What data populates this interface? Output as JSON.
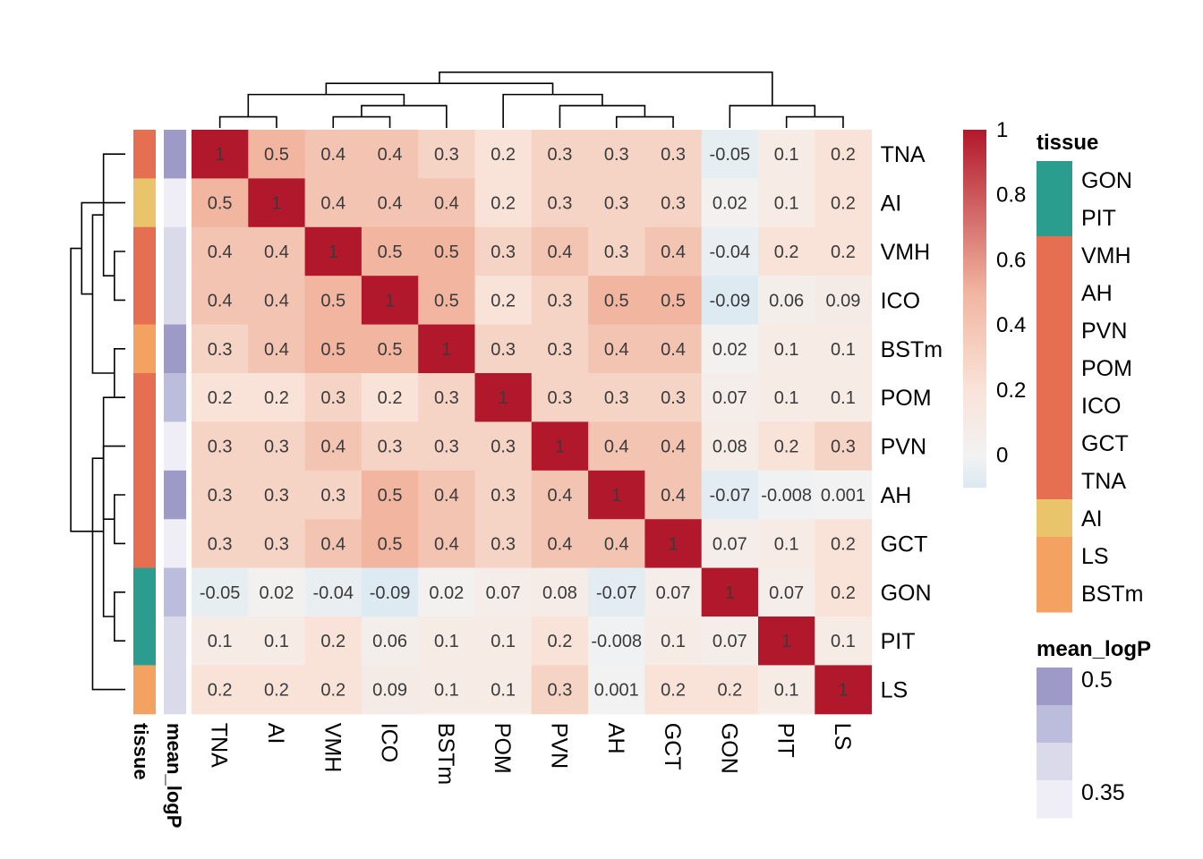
{
  "chart_data": {
    "type": "heatmap",
    "labels": [
      "TNA",
      "AI",
      "VMH",
      "ICO",
      "BSTm",
      "POM",
      "PVN",
      "AH",
      "GCT",
      "GON",
      "PIT",
      "LS"
    ],
    "matrix": [
      [
        1,
        0.5,
        0.4,
        0.4,
        0.3,
        0.2,
        0.3,
        0.3,
        0.3,
        -0.05,
        0.1,
        0.2
      ],
      [
        0.5,
        1,
        0.4,
        0.4,
        0.4,
        0.2,
        0.3,
        0.3,
        0.3,
        0.02,
        0.1,
        0.2
      ],
      [
        0.4,
        0.4,
        1,
        0.5,
        0.5,
        0.3,
        0.4,
        0.3,
        0.4,
        -0.04,
        0.2,
        0.2
      ],
      [
        0.4,
        0.4,
        0.5,
        1,
        0.5,
        0.2,
        0.3,
        0.5,
        0.5,
        -0.09,
        0.06,
        0.09
      ],
      [
        0.3,
        0.4,
        0.5,
        0.5,
        1,
        0.3,
        0.3,
        0.4,
        0.4,
        0.02,
        0.1,
        0.1
      ],
      [
        0.2,
        0.2,
        0.3,
        0.2,
        0.3,
        1,
        0.3,
        0.3,
        0.3,
        0.07,
        0.1,
        0.1
      ],
      [
        0.3,
        0.3,
        0.4,
        0.3,
        0.3,
        0.3,
        1,
        0.4,
        0.4,
        0.08,
        0.2,
        0.3
      ],
      [
        0.3,
        0.3,
        0.3,
        0.5,
        0.4,
        0.3,
        0.4,
        1,
        0.4,
        -0.07,
        -0.008,
        0.001
      ],
      [
        0.3,
        0.3,
        0.4,
        0.5,
        0.4,
        0.3,
        0.4,
        0.4,
        1,
        0.07,
        0.1,
        0.2
      ],
      [
        -0.05,
        0.02,
        -0.04,
        -0.09,
        0.02,
        0.07,
        0.08,
        -0.07,
        0.07,
        1,
        0.07,
        0.2
      ],
      [
        0.1,
        0.1,
        0.2,
        0.06,
        0.1,
        0.1,
        0.2,
        -0.008,
        0.1,
        0.07,
        1,
        0.1
      ],
      [
        0.2,
        0.2,
        0.2,
        0.09,
        0.1,
        0.1,
        0.3,
        0.001,
        0.2,
        0.2,
        0.1,
        1
      ]
    ],
    "value_labels": [
      [
        "1",
        "0.5",
        "0.4",
        "0.4",
        "0.3",
        "0.2",
        "0.3",
        "0.3",
        "0.3",
        "-0.05",
        "0.1",
        "0.2"
      ],
      [
        "0.5",
        "1",
        "0.4",
        "0.4",
        "0.4",
        "0.2",
        "0.3",
        "0.3",
        "0.3",
        "0.02",
        "0.1",
        "0.2"
      ],
      [
        "0.4",
        "0.4",
        "1",
        "0.5",
        "0.5",
        "0.3",
        "0.4",
        "0.3",
        "0.4",
        "-0.04",
        "0.2",
        "0.2"
      ],
      [
        "0.4",
        "0.4",
        "0.5",
        "1",
        "0.5",
        "0.2",
        "0.3",
        "0.5",
        "0.5",
        "-0.09",
        "0.06",
        "0.09"
      ],
      [
        "0.3",
        "0.4",
        "0.5",
        "0.5",
        "1",
        "0.3",
        "0.3",
        "0.4",
        "0.4",
        "0.02",
        "0.1",
        "0.1"
      ],
      [
        "0.2",
        "0.2",
        "0.3",
        "0.2",
        "0.3",
        "1",
        "0.3",
        "0.3",
        "0.3",
        "0.07",
        "0.1",
        "0.1"
      ],
      [
        "0.3",
        "0.3",
        "0.4",
        "0.3",
        "0.3",
        "0.3",
        "1",
        "0.4",
        "0.4",
        "0.08",
        "0.2",
        "0.3"
      ],
      [
        "0.3",
        "0.3",
        "0.3",
        "0.5",
        "0.4",
        "0.3",
        "0.4",
        "1",
        "0.4",
        "-0.07",
        "-0.008",
        "0.001"
      ],
      [
        "0.3",
        "0.3",
        "0.4",
        "0.5",
        "0.4",
        "0.3",
        "0.4",
        "0.4",
        "1",
        "0.07",
        "0.1",
        "0.2"
      ],
      [
        "-0.05",
        "0.02",
        "-0.04",
        "-0.09",
        "0.02",
        "0.07",
        "0.08",
        "-0.07",
        "0.07",
        "1",
        "0.07",
        "0.2"
      ],
      [
        "0.1",
        "0.1",
        "0.2",
        "0.06",
        "0.1",
        "0.1",
        "0.2",
        "-0.008",
        "0.1",
        "0.07",
        "1",
        "0.1"
      ],
      [
        "0.2",
        "0.2",
        "0.2",
        "0.09",
        "0.1",
        "0.1",
        "0.3",
        "0.001",
        "0.2",
        "0.2",
        "0.1",
        "1"
      ]
    ],
    "color_scale": {
      "stops": [
        {
          "value": -0.1,
          "color": "#dce9f2"
        },
        {
          "value": 0.0,
          "color": "#f2f2f2"
        },
        {
          "value": 0.2,
          "color": "#f9e3d8"
        },
        {
          "value": 0.5,
          "color": "#f1b5a0"
        },
        {
          "value": 1.0,
          "color": "#b2182b"
        }
      ],
      "ticks": [
        {
          "value": 1,
          "label": "1"
        },
        {
          "value": 0.8,
          "label": "0.8"
        },
        {
          "value": 0.6,
          "label": "0.6"
        },
        {
          "value": 0.4,
          "label": "0.4"
        },
        {
          "value": 0.2,
          "label": "0.2"
        },
        {
          "value": 0,
          "label": "0"
        }
      ],
      "range": [
        -0.1,
        1.0
      ]
    },
    "annotations": {
      "tissue": {
        "title": "tissue",
        "values": [
          "VMH",
          "AI",
          "VMH",
          "VMH",
          "BSTm",
          "VMH",
          "VMH",
          "VMH",
          "VMH",
          "GON",
          "GON",
          "BSTm"
        ],
        "legend": [
          {
            "label": "GON",
            "color": "#2a9d8f"
          },
          {
            "label": "PIT",
            "color": "#2a9d8f"
          },
          {
            "label": "VMH",
            "color": "#e76f51"
          },
          {
            "label": "AH",
            "color": "#e76f51"
          },
          {
            "label": "PVN",
            "color": "#e76f51"
          },
          {
            "label": "POM",
            "color": "#e76f51"
          },
          {
            "label": "ICO",
            "color": "#e76f51"
          },
          {
            "label": "GCT",
            "color": "#e76f51"
          },
          {
            "label": "TNA",
            "color": "#e76f51"
          },
          {
            "label": "AI",
            "color": "#e9c46a"
          },
          {
            "label": "LS",
            "color": "#f4a261"
          },
          {
            "label": "BSTm",
            "color": "#f4a261"
          }
        ]
      },
      "mean_logP": {
        "title": "mean_logP",
        "values": [
          0.5,
          0.35,
          0.4,
          0.4,
          0.5,
          0.45,
          0.35,
          0.5,
          0.35,
          0.45,
          0.4,
          0.4
        ],
        "legend_colors": [
          "#9e9ac8",
          "#bcbddc",
          "#dadaeb",
          "#efedf5"
        ],
        "legend_ticks": [
          {
            "value": 0.5,
            "label": "0.5"
          },
          {
            "value": 0.35,
            "label": "0.35"
          }
        ]
      }
    },
    "row_dendrogram": [
      [
        2,
        3
      ],
      [
        12,
        0
      ],
      [
        4,
        5
      ],
      [
        13,
        14
      ],
      [
        1,
        15
      ],
      [
        9,
        10
      ],
      [
        7,
        8
      ],
      [
        17,
        6
      ],
      [
        18,
        5
      ],
      [
        16,
        19
      ],
      [
        11,
        20
      ]
    ],
    "col_dendrogram": [
      [
        2,
        3
      ],
      [
        12,
        4
      ],
      [
        0,
        1
      ],
      [
        13,
        14
      ],
      [
        7,
        8
      ],
      [
        16,
        6
      ],
      [
        17,
        5
      ],
      [
        10,
        11
      ],
      [
        9,
        19
      ],
      [
        15,
        18
      ],
      [
        20,
        21
      ]
    ]
  }
}
